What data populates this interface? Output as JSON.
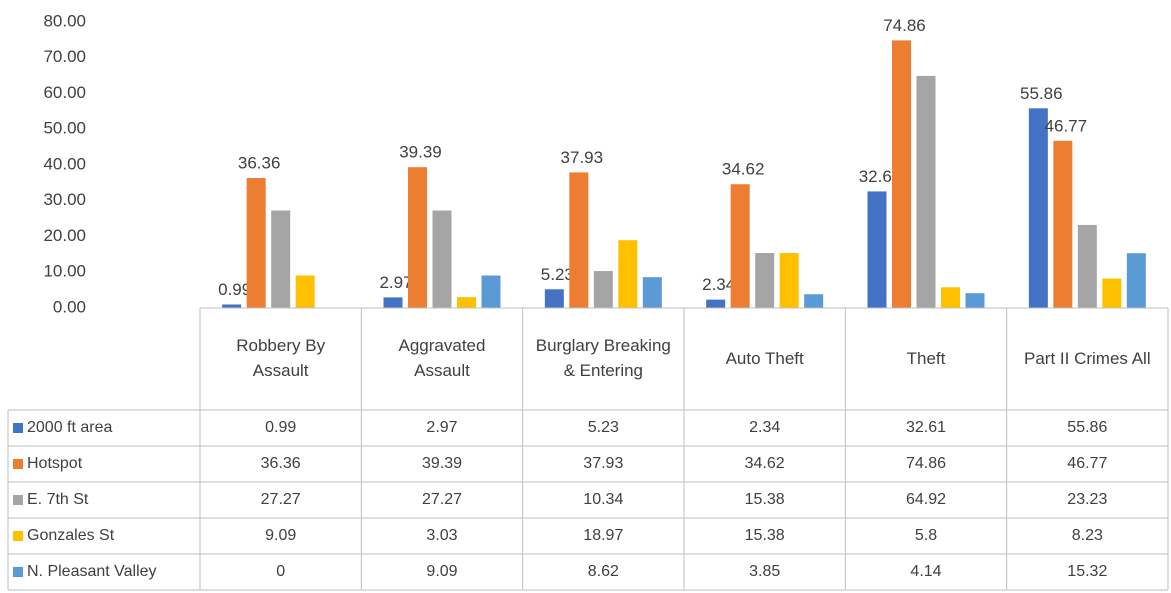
{
  "chart_data": {
    "type": "bar",
    "categories": [
      "Robbery By Assault",
      "Aggravated Assault",
      "Burglary Breaking & Entering",
      "Auto Theft",
      "Theft",
      "Part II Crimes All"
    ],
    "series": [
      {
        "name": "2000 ft area",
        "color": "#4472c4",
        "data_labels": true,
        "values": [
          0.99,
          2.97,
          5.23,
          2.34,
          32.61,
          55.86
        ]
      },
      {
        "name": "Hotspot",
        "color": "#ed7d31",
        "data_labels": true,
        "values": [
          36.36,
          39.39,
          37.93,
          34.62,
          74.86,
          46.77
        ]
      },
      {
        "name": "E. 7th St",
        "color": "#a5a5a5",
        "data_labels": false,
        "values": [
          27.27,
          27.27,
          10.34,
          15.38,
          64.92,
          23.23
        ]
      },
      {
        "name": "Gonzales St",
        "color": "#ffc000",
        "data_labels": false,
        "values": [
          9.09,
          3.03,
          18.97,
          15.38,
          5.8,
          8.23
        ]
      },
      {
        "name": "N. Pleasant Valley",
        "color": "#5b9bd5",
        "data_labels": false,
        "values": [
          0,
          9.09,
          8.62,
          3.85,
          4.14,
          15.32
        ]
      }
    ],
    "ylim": [
      0,
      80
    ],
    "yticks": [
      {
        "value": 0,
        "label": "0.00"
      },
      {
        "value": 10,
        "label": "10.00"
      },
      {
        "value": 20,
        "label": "20.00"
      },
      {
        "value": 30,
        "label": "30.00"
      },
      {
        "value": 40,
        "label": "40.00"
      },
      {
        "value": 50,
        "label": "50.00"
      },
      {
        "value": 60,
        "label": "60.00"
      },
      {
        "value": 70,
        "label": "70.00"
      },
      {
        "value": 80,
        "label": "80.00"
      }
    ],
    "grid": false,
    "data_table": true
  }
}
